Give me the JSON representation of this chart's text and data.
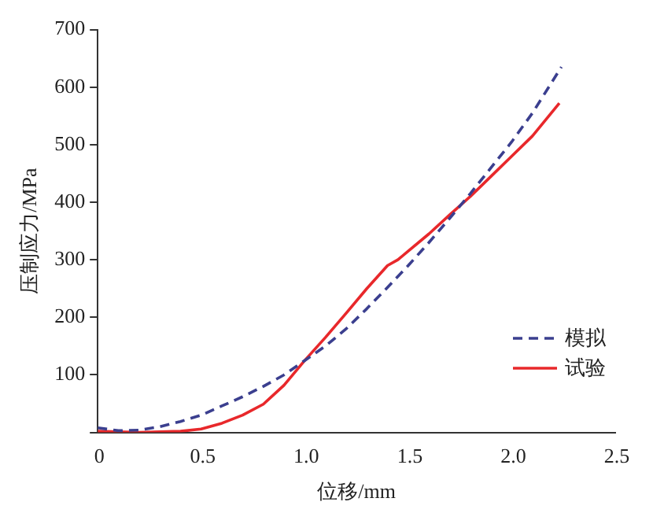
{
  "chart_data": {
    "type": "line",
    "xlabel": "位移/mm",
    "ylabel": "压制应力/MPa",
    "xlim": [
      0,
      2.5
    ],
    "xticks": [
      0,
      0.5,
      {
        "value": 1,
        "label": "1.0"
      },
      1.5,
      {
        "value": 2,
        "label": "2.0"
      },
      2.5
    ],
    "ylim": [
      0,
      700
    ],
    "yticks": [
      {
        "value": 0,
        "label": null
      },
      100,
      200,
      300,
      400,
      500,
      600,
      700
    ],
    "grid": false,
    "legend": "bottom right",
    "marker": "none",
    "series": [
      {
        "name": "模拟",
        "color": "#3b3f8f",
        "line_style": "dashed",
        "x": [
          0,
          0.1,
          0.2,
          0.3,
          0.4,
          0.5,
          0.6,
          0.7,
          0.8,
          0.9,
          1.0,
          1.1,
          1.2,
          1.3,
          1.4,
          1.5,
          1.6,
          1.7,
          1.8,
          1.9,
          2.0,
          2.1,
          2.24
        ],
        "values": [
          8,
          3,
          4,
          10,
          19,
          30,
          46,
          62,
          80,
          100,
          125,
          150,
          180,
          215,
          252,
          290,
          330,
          372,
          415,
          460,
          505,
          555,
          635
        ]
      },
      {
        "name": "试验",
        "color": "#e8282b",
        "line_style": "solid",
        "x": [
          0,
          0.2,
          0.4,
          0.5,
          0.6,
          0.7,
          0.8,
          0.9,
          1.0,
          1.1,
          1.2,
          1.3,
          1.4,
          1.45,
          1.5,
          1.6,
          1.7,
          1.8,
          1.9,
          2.0,
          2.1,
          2.23
        ],
        "values": [
          2,
          0,
          2,
          6,
          16,
          30,
          49,
          82,
          125,
          165,
          207,
          250,
          290,
          300,
          315,
          345,
          378,
          410,
          445,
          480,
          515,
          572
        ]
      }
    ]
  }
}
